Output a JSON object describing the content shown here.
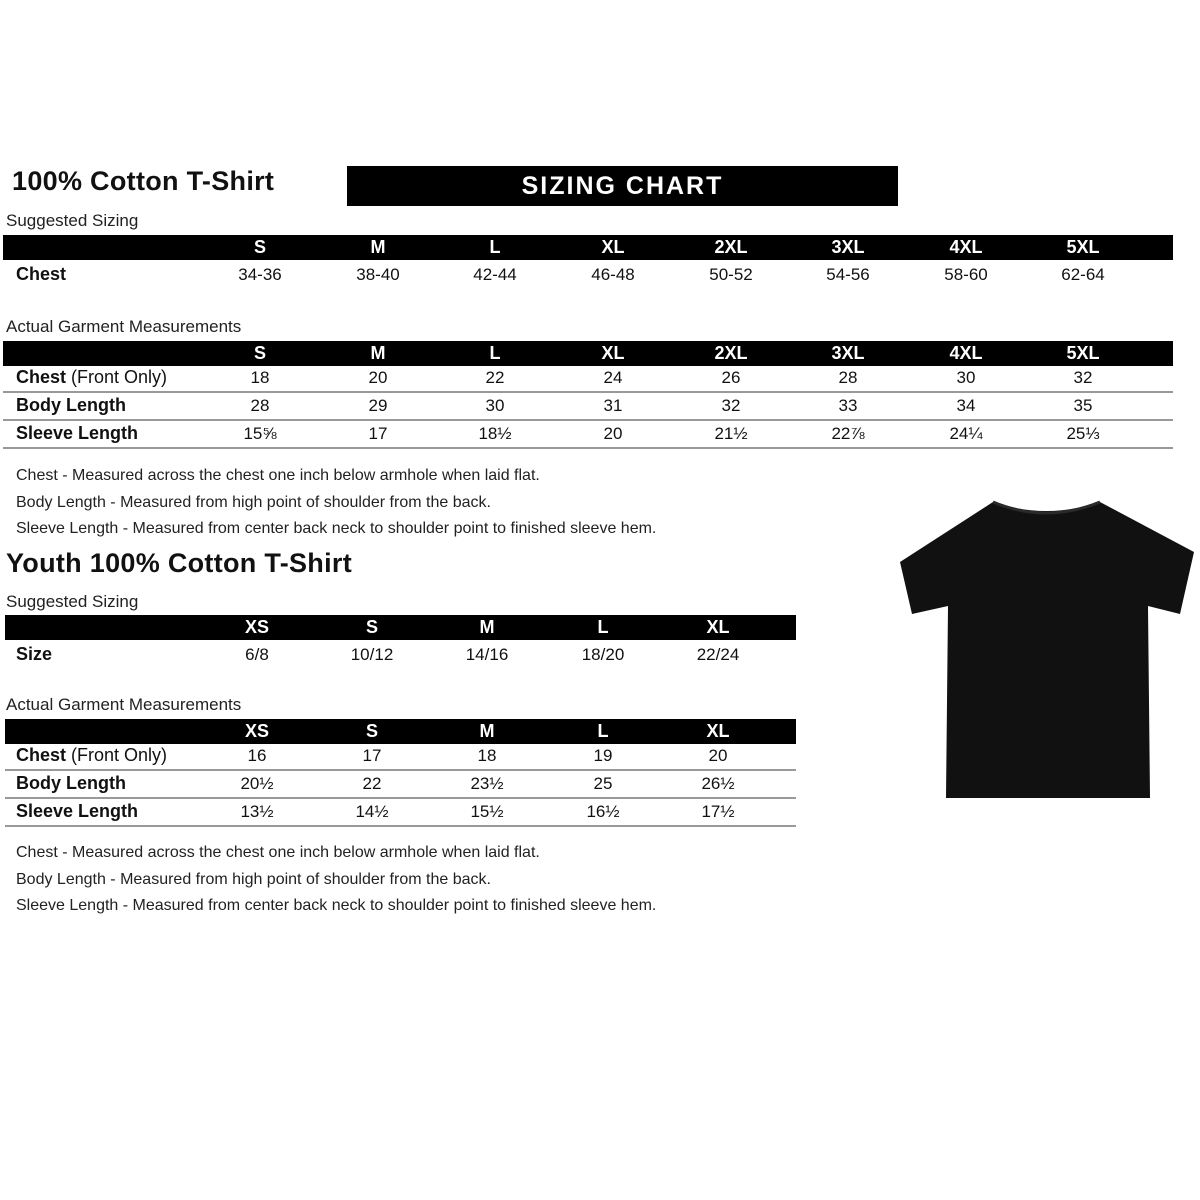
{
  "adult": {
    "title": "100% Cotton T-Shirt",
    "banner": "SIZING CHART",
    "suggested_label": "Suggested Sizing",
    "sizes": [
      "S",
      "M",
      "L",
      "XL",
      "2XL",
      "3XL",
      "4XL",
      "5XL"
    ],
    "suggested_rows": [
      {
        "label": "Chest",
        "values": [
          "34-36",
          "38-40",
          "42-44",
          "46-48",
          "50-52",
          "54-56",
          "58-60",
          "62-64"
        ]
      }
    ],
    "actual_label": "Actual Garment Measurements",
    "actual_rows": [
      {
        "label": "Chest",
        "label_note": "(Front Only)",
        "values": [
          "18",
          "20",
          "22",
          "24",
          "26",
          "28",
          "30",
          "32"
        ]
      },
      {
        "label": "Body Length",
        "label_note": "",
        "values": [
          "28",
          "29",
          "30",
          "31",
          "32",
          "33",
          "34",
          "35"
        ]
      },
      {
        "label": "Sleeve Length",
        "label_note": "",
        "values": [
          "15⅝",
          "17",
          "18½",
          "20",
          "21½",
          "22⅞",
          "24¼",
          "25⅓"
        ]
      }
    ],
    "notes": [
      "Chest - Measured across the chest one inch below armhole when laid flat.",
      "Body Length - Measured from high point of shoulder from the back.",
      "Sleeve Length - Measured from center back neck to shoulder point to finished sleeve hem."
    ]
  },
  "youth": {
    "title": "Youth 100% Cotton T-Shirt",
    "suggested_label": "Suggested Sizing",
    "sizes": [
      "XS",
      "S",
      "M",
      "L",
      "XL"
    ],
    "suggested_rows": [
      {
        "label": "Size",
        "values": [
          "6/8",
          "10/12",
          "14/16",
          "18/20",
          "22/24"
        ]
      }
    ],
    "actual_label": "Actual Garment Measurements",
    "actual_rows": [
      {
        "label": "Chest",
        "label_note": "(Front Only)",
        "values": [
          "16",
          "17",
          "18",
          "19",
          "20"
        ]
      },
      {
        "label": "Body Length",
        "label_note": "",
        "values": [
          "20½",
          "22",
          "23½",
          "25",
          "26½"
        ]
      },
      {
        "label": "Sleeve Length",
        "label_note": "",
        "values": [
          "13½",
          "14½",
          "15½",
          "16½",
          "17½"
        ]
      }
    ],
    "notes": [
      "Chest - Measured across the chest one inch below armhole when laid flat.",
      "Body Length - Measured from high point of shoulder from the back.",
      "Sleeve Length - Measured from center back neck to shoulder point to finished sleeve hem."
    ]
  },
  "image": {
    "icon": "tshirt-icon",
    "color": "#111111"
  }
}
